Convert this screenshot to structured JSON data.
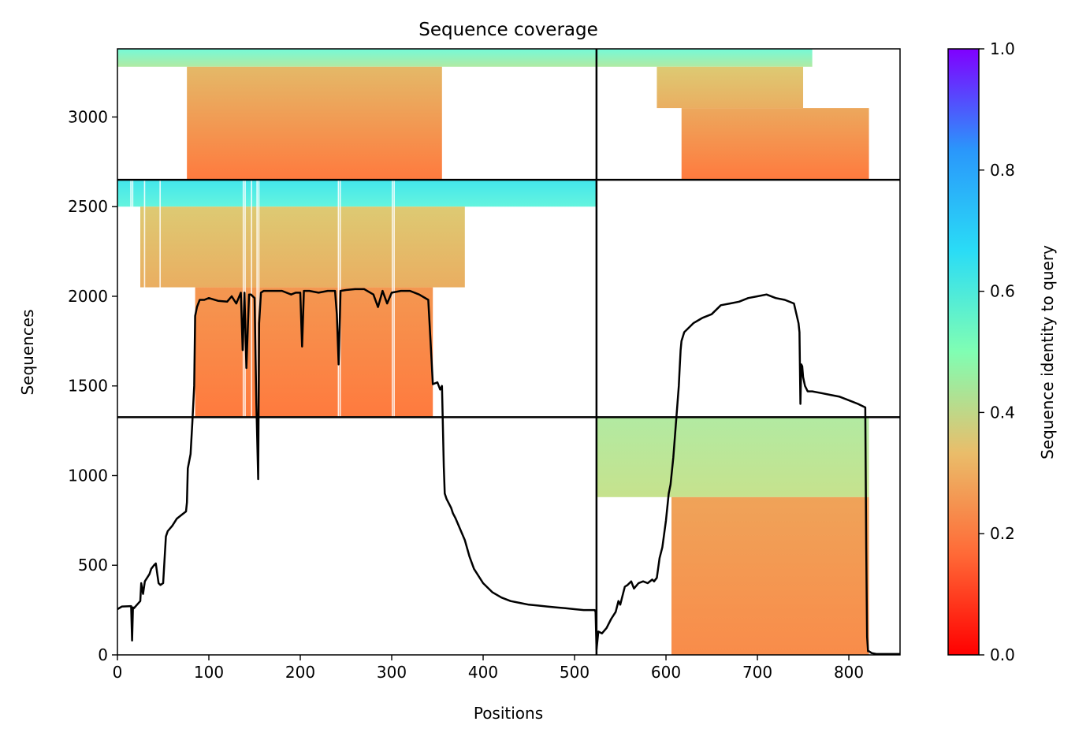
{
  "chart_data": {
    "type": "heatmap",
    "title": "Sequence coverage",
    "xlabel": "Positions",
    "ylabel": "Sequences",
    "xlim": [
      0,
      856
    ],
    "ylim": [
      0,
      3380
    ],
    "xticks": [
      0,
      100,
      200,
      300,
      400,
      500,
      600,
      700,
      800
    ],
    "yticks": [
      0,
      500,
      1000,
      1500,
      2000,
      2500,
      3000
    ],
    "chain_boundary_x": 524,
    "group_boundaries_y": [
      1326,
      2650
    ],
    "colorbar": {
      "label": "Sequence identity to query",
      "range": [
        0,
        1
      ],
      "ticks": [
        0.0,
        0.2,
        0.4,
        0.6,
        0.8,
        1.0
      ],
      "tick_labels": [
        "0.0",
        "0.2",
        "0.4",
        "0.6",
        "0.8",
        "1.0"
      ],
      "colormap": "rainbow_r",
      "colors": [
        "#ff0000",
        "#ff7f41",
        "#d4dd80",
        "#7ffed4",
        "#2adcf6",
        "#3f82fd",
        "#8000ff"
      ]
    },
    "coverage_blocks": [
      {
        "x0": 0,
        "x1": 524,
        "y0": 3280,
        "y1": 3380,
        "identity_top": 0.52,
        "identity_bottom": 0.4
      },
      {
        "x0": 76,
        "x1": 355,
        "y0": 2650,
        "y1": 3280,
        "identity_top": 0.27,
        "identity_bottom": 0.16
      },
      {
        "x0": 0,
        "x1": 524,
        "y0": 2500,
        "y1": 2650,
        "identity_top": 0.62,
        "identity_bottom": 0.55
      },
      {
        "x0": 25,
        "x1": 380,
        "y0": 2050,
        "y1": 2500,
        "identity_top": 0.3,
        "identity_bottom": 0.25
      },
      {
        "x0": 85,
        "x1": 345,
        "y0": 1326,
        "y1": 2050,
        "identity_top": 0.21,
        "identity_bottom": 0.16
      },
      {
        "x0": 524,
        "x1": 760,
        "y0": 3280,
        "y1": 3380,
        "identity_top": 0.52,
        "identity_bottom": 0.4
      },
      {
        "x0": 590,
        "x1": 750,
        "y0": 3050,
        "y1": 3280,
        "identity_top": 0.3,
        "identity_bottom": 0.25
      },
      {
        "x0": 617,
        "x1": 822,
        "y0": 2650,
        "y1": 3050,
        "identity_top": 0.24,
        "identity_bottom": 0.16
      },
      {
        "x0": 524,
        "x1": 822,
        "y0": 880,
        "y1": 1326,
        "identity_top": 0.4,
        "identity_bottom": 0.36
      },
      {
        "x0": 606,
        "x1": 822,
        "y0": 0,
        "y1": 880,
        "identity_top": 0.23,
        "identity_bottom": 0.19
      }
    ],
    "series": [
      {
        "type": "line",
        "color": "#000000",
        "x": [
          0,
          5,
          15,
          16,
          17,
          18,
          25,
          26,
          28,
          30,
          35,
          37,
          40,
          42,
          45,
          47,
          50,
          53,
          55,
          60,
          65,
          70,
          75,
          76,
          77,
          80,
          82,
          84,
          85,
          87,
          90,
          95,
          100,
          110,
          120,
          125,
          130,
          135,
          137,
          139,
          141,
          144,
          146,
          150,
          152,
          154,
          155,
          157,
          160,
          170,
          180,
          190,
          195,
          200,
          202,
          204,
          210,
          220,
          230,
          238,
          240,
          242,
          244,
          250,
          260,
          270,
          280,
          285,
          290,
          295,
          300,
          310,
          320,
          330,
          340,
          343,
          345,
          350,
          353,
          355,
          357,
          358,
          360,
          362,
          365,
          367,
          370,
          375,
          380,
          385,
          390,
          400,
          410,
          420,
          430,
          440,
          450,
          460,
          470,
          480,
          490,
          500,
          510,
          522,
          523,
          524,
          526,
          530,
          535,
          540,
          545,
          548,
          550,
          552,
          555,
          558,
          560,
          562,
          565,
          570,
          575,
          580,
          585,
          587,
          590,
          593,
          596,
          600,
          603,
          605,
          608,
          611,
          614,
          615,
          616,
          617,
          620,
          630,
          640,
          650,
          660,
          670,
          680,
          690,
          700,
          710,
          720,
          730,
          740,
          745,
          746,
          747,
          748,
          749,
          750,
          752,
          755,
          760,
          770,
          780,
          790,
          800,
          810,
          818,
          819,
          820,
          821,
          822,
          825,
          830,
          840,
          856
        ],
        "y": [
          255,
          270,
          272,
          80,
          265,
          260,
          300,
          400,
          340,
          410,
          450,
          480,
          500,
          510,
          400,
          390,
          400,
          660,
          690,
          720,
          760,
          780,
          800,
          850,
          1040,
          1120,
          1300,
          1500,
          1890,
          1940,
          1980,
          1980,
          1990,
          1975,
          1970,
          2000,
          1960,
          2020,
          1700,
          2020,
          1600,
          2010,
          2010,
          1990,
          1400,
          980,
          1850,
          2020,
          2030,
          2030,
          2030,
          2010,
          2020,
          2020,
          1720,
          2030,
          2030,
          2020,
          2030,
          2030,
          1900,
          1620,
          2030,
          2035,
          2040,
          2040,
          2010,
          1940,
          2030,
          1960,
          2020,
          2030,
          2030,
          2010,
          1980,
          1700,
          1510,
          1520,
          1480,
          1500,
          1050,
          900,
          870,
          850,
          820,
          790,
          760,
          700,
          640,
          550,
          480,
          400,
          350,
          320,
          300,
          290,
          280,
          275,
          270,
          265,
          260,
          255,
          250,
          250,
          240,
          30,
          130,
          120,
          150,
          200,
          240,
          300,
          280,
          320,
          380,
          390,
          400,
          410,
          370,
          400,
          410,
          400,
          420,
          410,
          430,
          540,
          600,
          750,
          900,
          950,
          1100,
          1300,
          1500,
          1600,
          1700,
          1750,
          1800,
          1850,
          1880,
          1900,
          1950,
          1960,
          1970,
          1990,
          2000,
          2010,
          1990,
          1980,
          1960,
          1850,
          1800,
          1400,
          1620,
          1610,
          1550,
          1500,
          1470,
          1470,
          1460,
          1450,
          1440,
          1420,
          1400,
          1380,
          600,
          100,
          20,
          20,
          10,
          5,
          5,
          5
        ]
      }
    ]
  }
}
